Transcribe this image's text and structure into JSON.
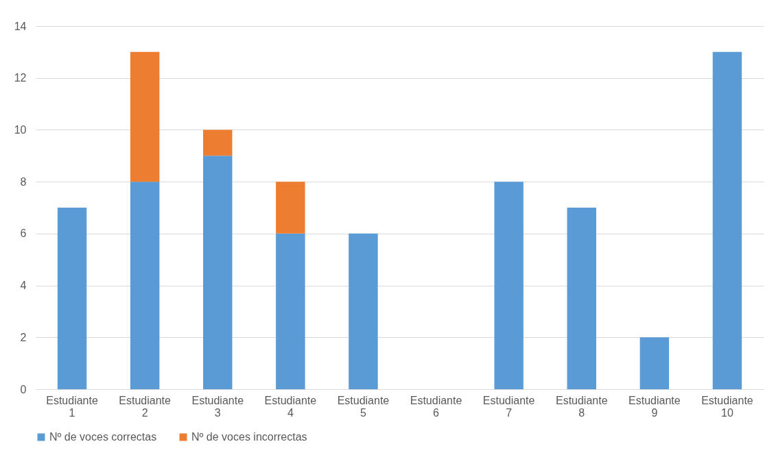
{
  "chart_data": {
    "type": "bar",
    "stacked": true,
    "categories": [
      "Estudiante 1",
      "Estudiante 2",
      "Estudiante 3",
      "Estudiante 4",
      "Estudiante 5",
      "Estudiante 6",
      "Estudiante 7",
      "Estudiante 8",
      "Estudiante 9",
      "Estudiante 10"
    ],
    "series": [
      {
        "name": "Nº de voces correctas",
        "color": "#5b9bd5",
        "values": [
          7,
          8,
          9,
          6,
          6,
          0,
          8,
          7,
          2,
          13
        ]
      },
      {
        "name": "Nº de voces incorrectas",
        "color": "#ed7d31",
        "values": [
          0,
          5,
          1,
          2,
          0,
          0,
          0,
          0,
          0,
          0
        ]
      }
    ],
    "ylim": [
      0,
      14
    ],
    "yticks": [
      0,
      2,
      4,
      6,
      8,
      10,
      12,
      14
    ],
    "grid": "y",
    "legend": "bottom"
  }
}
